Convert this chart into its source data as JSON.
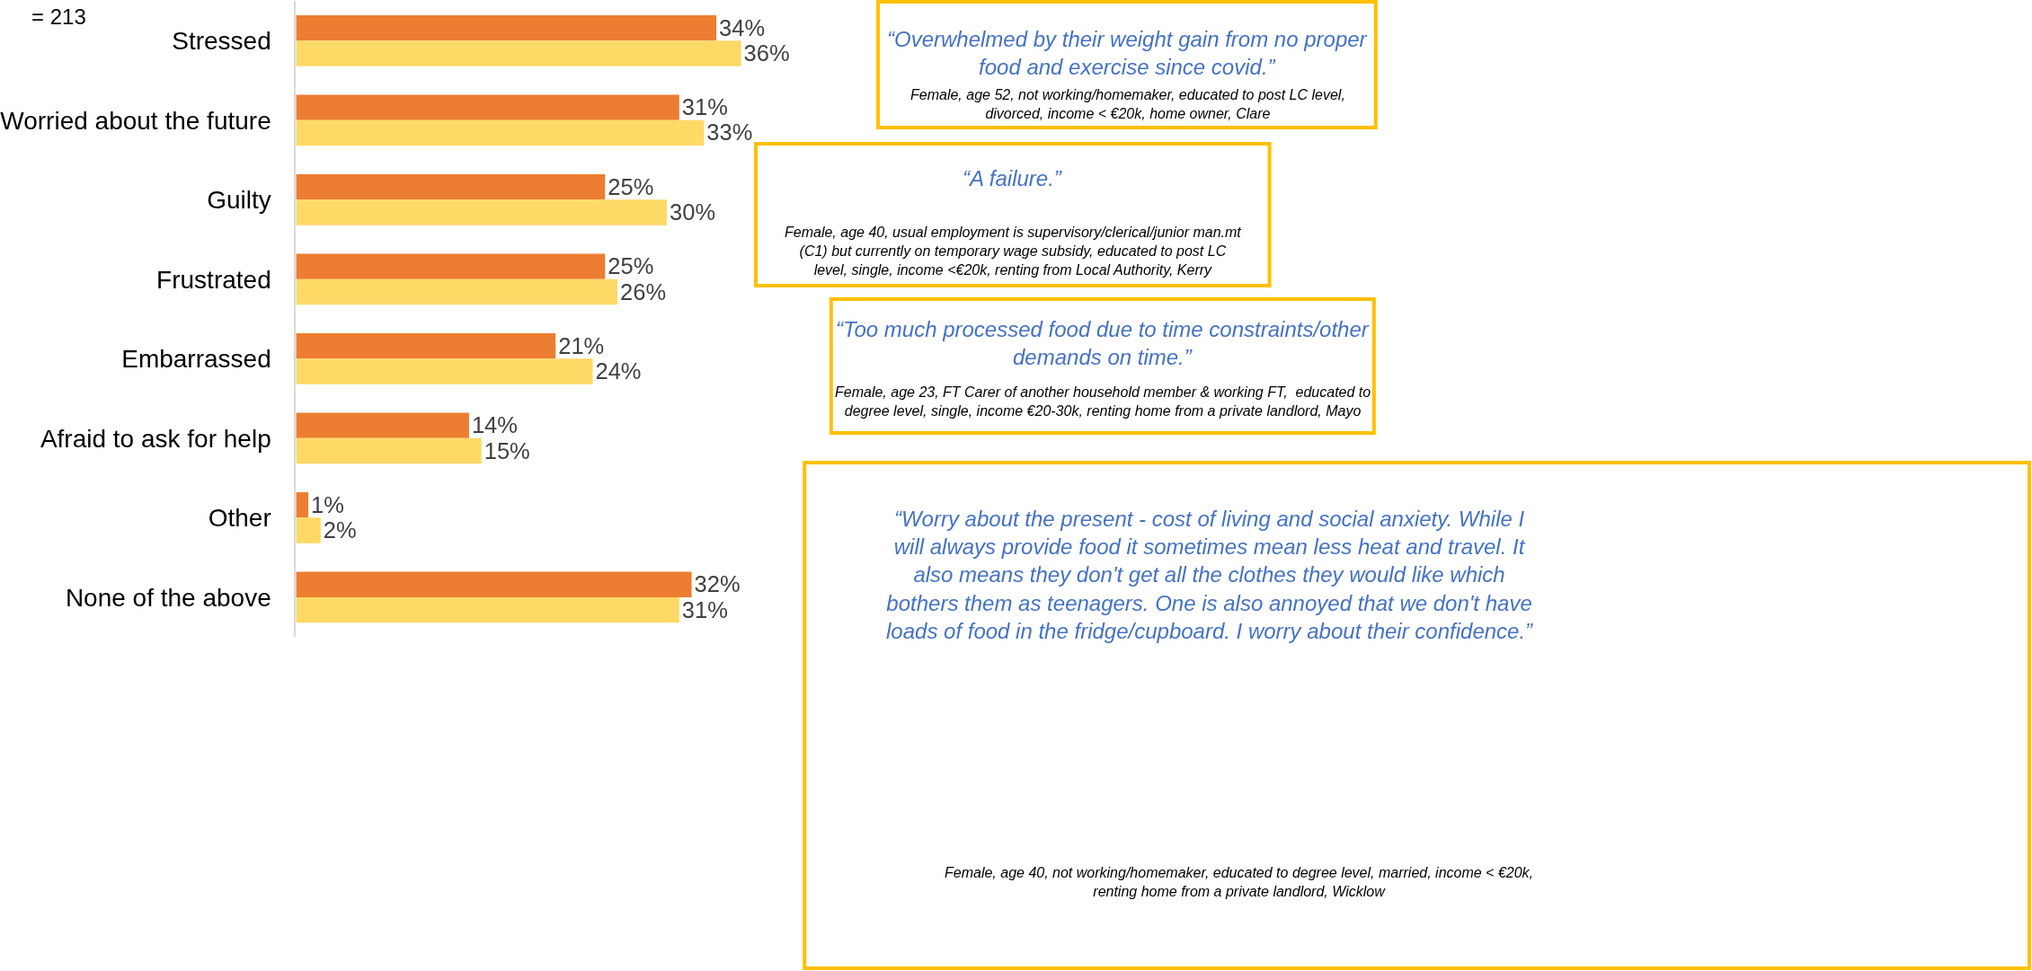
{
  "chart_data": {
    "type": "bar",
    "orientation": "horizontal",
    "categories": [
      "Stressed",
      "Worried about the future",
      "Guilty",
      "Frustrated",
      "Embarrassed",
      "Afraid to ask for help",
      "Other",
      "None of the above"
    ],
    "series": [
      {
        "color": "#ed7d31",
        "values": [
          34,
          31,
          25,
          25,
          21,
          14,
          1,
          32
        ],
        "value_labels": [
          "34%",
          "31%",
          "25%",
          "25%",
          "21%",
          "14%",
          "1%",
          "32%"
        ]
      },
      {
        "color": "#ffd966",
        "values": [
          36,
          33,
          30,
          26,
          24,
          15,
          2,
          31
        ],
        "value_labels": [
          "36%",
          "33%",
          "30%",
          "26%",
          "24%",
          "15%",
          "2%",
          "31%"
        ]
      }
    ],
    "tick_labels": "y",
    "annotations": [
      "= 213",
      "“Overwhelmed by their weight gain from no proper food and exercise since covid.”",
      "Female, age 52, not working/homemaker, educated to post LC level, divorced, income < €20k, home owner, Clare",
      "“A failure.”",
      "Female, age 40, usual employment is supervisory/clerical/junior man.mt (C1) but currently on temporary wage subsidy, educated to post LC level, single, income <€20k, renting from Local Authority, Kerry",
      "“Too much processed food due to time constraints/other demands on time.”",
      "Female, age 23, FT Carer of another household member & working FT,  educated to degree level, single, income €20-30k, renting home from a private landlord, Mayo",
      "“Worry about the present - cost of living and social anxiety. While I will always provide food it sometimes mean less heat and travel. It also means they don't get all the clothes they would like which bothers them as teenagers. One is also annoyed that we don't have loads of food in the fridge/cupboard. I worry about their confidence.”",
      "Female, age 40, not working/homemaker, educated to degree level, married, income < €20k, renting home from a private landlord, Wicklow"
    ]
  }
}
